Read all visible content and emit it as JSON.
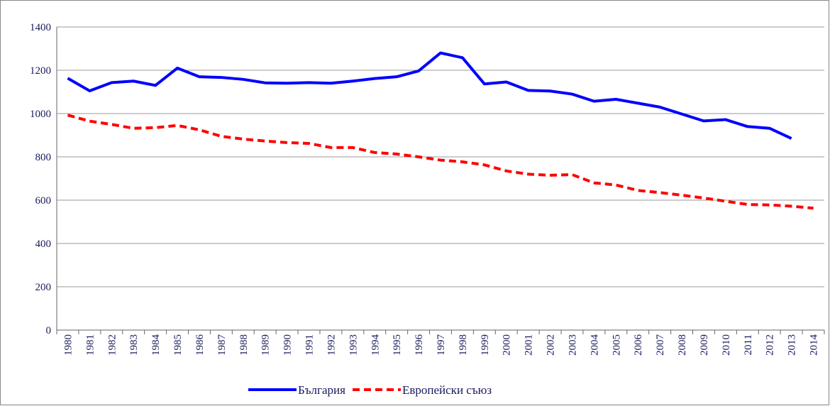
{
  "chart_data": {
    "type": "line",
    "categories": [
      "1980",
      "1981",
      "1982",
      "1983",
      "1984",
      "1985",
      "1986",
      "1987",
      "1988",
      "1989",
      "1990",
      "1991",
      "1992",
      "1993",
      "1994",
      "1995",
      "1996",
      "1997",
      "1998",
      "1999",
      "2000",
      "2001",
      "2002",
      "2003",
      "2004",
      "2005",
      "2006",
      "2007",
      "2008",
      "2009",
      "2010",
      "2011",
      "2012",
      "2013",
      "2014"
    ],
    "series": [
      {
        "name": "България",
        "color": "#0000ff",
        "dash": false,
        "values": [
          1163,
          1105,
          1143,
          1150,
          1130,
          1210,
          1170,
          1167,
          1158,
          1142,
          1140,
          1143,
          1140,
          1150,
          1162,
          1170,
          1197,
          1280,
          1258,
          1137,
          1146,
          1107,
          1104,
          1090,
          1057,
          1066,
          1048,
          1030,
          998,
          966,
          972,
          940,
          932,
          885,
          null
        ]
      },
      {
        "name": "Европейски съюз",
        "color": "#ff0000",
        "dash": true,
        "values": [
          993,
          965,
          950,
          932,
          935,
          945,
          925,
          895,
          882,
          873,
          866,
          862,
          843,
          843,
          820,
          813,
          800,
          785,
          777,
          763,
          735,
          720,
          715,
          718,
          680,
          670,
          645,
          635,
          623,
          610,
          595,
          580,
          578,
          572,
          563
        ]
      }
    ],
    "ylim": [
      0,
      1400
    ],
    "yticks": [
      0,
      200,
      400,
      600,
      800,
      1000,
      1200,
      1400
    ],
    "grid": true,
    "legend": "bottom"
  }
}
